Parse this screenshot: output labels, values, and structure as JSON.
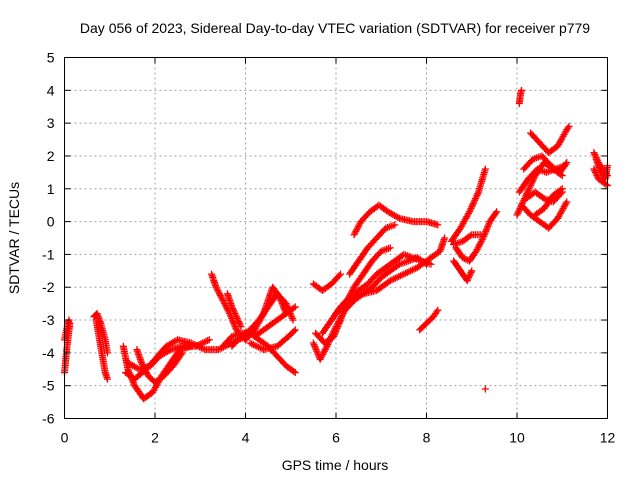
{
  "chart_data": {
    "type": "scatter",
    "title": "Day 056 of 2023, Sidereal Day-to-day VTEC variation (SDTVAR) for receiver p779",
    "xlabel": "GPS time / hours",
    "ylabel": "SDTVAR / TECUs",
    "xlim": [
      0,
      12
    ],
    "ylim": [
      -6,
      5
    ],
    "xticks": [
      0,
      2,
      4,
      6,
      8,
      10,
      12
    ],
    "yticks": [
      -6,
      -5,
      -4,
      -3,
      -2,
      -1,
      0,
      1,
      2,
      3,
      4,
      5
    ],
    "grid": true,
    "marker": "plus",
    "colors": {
      "points": "#ff0000"
    },
    "series": [
      {
        "segments": [
          [
            [
              0.0,
              -4.6
            ],
            [
              0.05,
              -3.9
            ],
            [
              0.1,
              -3.3
            ],
            [
              0.12,
              -3.1
            ]
          ],
          [
            [
              0.0,
              -3.6
            ],
            [
              0.06,
              -3.2
            ],
            [
              0.1,
              -3.0
            ]
          ],
          [
            [
              0.7,
              -3.0
            ],
            [
              0.75,
              -3.4
            ],
            [
              0.8,
              -3.8
            ],
            [
              0.85,
              -4.2
            ],
            [
              0.9,
              -4.6
            ],
            [
              0.95,
              -4.8
            ]
          ],
          [
            [
              0.65,
              -2.9
            ],
            [
              0.72,
              -2.8
            ],
            [
              0.8,
              -3.1
            ],
            [
              0.9,
              -3.6
            ],
            [
              0.95,
              -4.0
            ]
          ],
          [
            [
              1.3,
              -3.8
            ],
            [
              1.4,
              -4.5
            ],
            [
              1.55,
              -5.0
            ],
            [
              1.75,
              -5.4
            ],
            [
              1.95,
              -5.2
            ],
            [
              2.15,
              -4.7
            ],
            [
              2.35,
              -4.3
            ],
            [
              2.55,
              -3.9
            ],
            [
              2.8,
              -3.8
            ]
          ],
          [
            [
              1.35,
              -4.6
            ],
            [
              1.55,
              -4.8
            ],
            [
              1.8,
              -4.5
            ],
            [
              2.0,
              -4.2
            ],
            [
              2.25,
              -3.8
            ],
            [
              2.5,
              -3.6
            ],
            [
              2.8,
              -3.7
            ],
            [
              3.1,
              -3.9
            ],
            [
              3.4,
              -3.9
            ],
            [
              3.7,
              -3.7
            ],
            [
              4.0,
              -3.5
            ]
          ],
          [
            [
              1.4,
              -4.3
            ],
            [
              1.65,
              -4.5
            ],
            [
              1.9,
              -4.4
            ],
            [
              2.1,
              -4.1
            ],
            [
              2.35,
              -3.9
            ],
            [
              2.6,
              -3.8
            ],
            [
              2.9,
              -3.8
            ],
            [
              3.2,
              -3.6
            ]
          ],
          [
            [
              1.6,
              -3.9
            ],
            [
              1.7,
              -4.3
            ],
            [
              1.85,
              -4.7
            ],
            [
              2.0,
              -4.9
            ],
            [
              2.2,
              -4.7
            ],
            [
              2.4,
              -4.4
            ],
            [
              2.6,
              -4.0
            ]
          ],
          [
            [
              3.25,
              -1.6
            ],
            [
              3.35,
              -2.0
            ],
            [
              3.5,
              -2.4
            ],
            [
              3.65,
              -2.8
            ],
            [
              3.8,
              -3.3
            ],
            [
              4.0,
              -3.6
            ]
          ],
          [
            [
              3.6,
              -2.2
            ],
            [
              3.7,
              -2.6
            ],
            [
              3.8,
              -2.9
            ],
            [
              3.9,
              -3.2
            ]
          ],
          [
            [
              3.5,
              -3.8
            ],
            [
              3.7,
              -3.5
            ],
            [
              3.9,
              -3.4
            ],
            [
              4.1,
              -3.4
            ],
            [
              4.3,
              -3.6
            ],
            [
              4.5,
              -3.8
            ],
            [
              4.7,
              -4.1
            ],
            [
              4.9,
              -4.4
            ],
            [
              5.1,
              -4.6
            ]
          ],
          [
            [
              3.7,
              -3.8
            ],
            [
              3.9,
              -3.5
            ],
            [
              4.1,
              -3.3
            ],
            [
              4.3,
              -3.0
            ],
            [
              4.5,
              -2.6
            ],
            [
              4.7,
              -2.2
            ],
            [
              4.9,
              -2.5
            ],
            [
              5.05,
              -3.0
            ]
          ],
          [
            [
              4.0,
              -3.6
            ],
            [
              4.2,
              -3.3
            ],
            [
              4.4,
              -2.8
            ],
            [
              4.5,
              -2.4
            ],
            [
              4.6,
              -2.0
            ],
            [
              4.75,
              -2.3
            ],
            [
              4.9,
              -2.8
            ]
          ],
          [
            [
              4.1,
              -3.7
            ],
            [
              4.4,
              -3.9
            ],
            [
              4.7,
              -3.8
            ],
            [
              4.95,
              -3.5
            ],
            [
              5.1,
              -3.3
            ]
          ],
          [
            [
              4.2,
              -3.5
            ],
            [
              4.5,
              -3.2
            ],
            [
              4.8,
              -2.9
            ],
            [
              5.1,
              -2.6
            ]
          ],
          [
            [
              5.5,
              -1.9
            ],
            [
              5.7,
              -2.1
            ],
            [
              5.9,
              -1.9
            ],
            [
              6.1,
              -1.6
            ]
          ],
          [
            [
              5.55,
              -3.4
            ],
            [
              5.75,
              -3.7
            ],
            [
              5.95,
              -3.5
            ],
            [
              6.1,
              -3.0
            ],
            [
              6.25,
              -2.4
            ],
            [
              6.4,
              -2.0
            ],
            [
              6.6,
              -1.6
            ],
            [
              6.8,
              -1.2
            ],
            [
              7.0,
              -0.9
            ],
            [
              7.2,
              -0.8
            ]
          ],
          [
            [
              5.5,
              -3.7
            ],
            [
              5.65,
              -4.2
            ],
            [
              5.8,
              -3.8
            ],
            [
              6.0,
              -3.2
            ],
            [
              6.2,
              -2.7
            ],
            [
              6.4,
              -2.4
            ],
            [
              6.6,
              -2.2
            ],
            [
              6.8,
              -2.0
            ],
            [
              7.0,
              -1.7
            ],
            [
              7.2,
              -1.5
            ],
            [
              7.4,
              -1.3
            ],
            [
              7.6,
              -1.2
            ],
            [
              7.8,
              -1.1
            ],
            [
              8.0,
              -1.3
            ]
          ],
          [
            [
              5.7,
              -3.4
            ],
            [
              5.9,
              -3.0
            ],
            [
              6.1,
              -2.6
            ],
            [
              6.3,
              -2.3
            ],
            [
              6.5,
              -2.1
            ],
            [
              6.7,
              -1.9
            ],
            [
              6.9,
              -1.6
            ],
            [
              7.1,
              -1.4
            ],
            [
              7.3,
              -1.2
            ],
            [
              7.5,
              -1.0
            ],
            [
              7.7,
              -1.1
            ],
            [
              7.9,
              -1.2
            ],
            [
              8.1,
              -1.3
            ]
          ],
          [
            [
              6.0,
              -2.8
            ],
            [
              6.3,
              -2.4
            ],
            [
              6.6,
              -2.2
            ],
            [
              6.9,
              -2.1
            ],
            [
              7.2,
              -1.8
            ],
            [
              7.5,
              -1.6
            ],
            [
              7.8,
              -1.4
            ],
            [
              8.1,
              -1.1
            ],
            [
              8.3,
              -0.9
            ],
            [
              8.4,
              -0.5
            ]
          ],
          [
            [
              6.3,
              -1.6
            ],
            [
              6.5,
              -1.2
            ],
            [
              6.7,
              -0.8
            ],
            [
              6.9,
              -0.5
            ],
            [
              7.1,
              -0.2
            ],
            [
              7.3,
              -0.1
            ]
          ],
          [
            [
              6.4,
              -0.4
            ],
            [
              6.55,
              0.0
            ],
            [
              6.75,
              0.3
            ],
            [
              6.95,
              0.5
            ],
            [
              7.15,
              0.3
            ],
            [
              7.4,
              0.1
            ],
            [
              7.7,
              0.0
            ],
            [
              8.0,
              0.0
            ],
            [
              8.25,
              -0.1
            ]
          ],
          [
            [
              7.85,
              -3.3
            ],
            [
              8.0,
              -3.1
            ],
            [
              8.15,
              -2.9
            ],
            [
              8.25,
              -2.7
            ]
          ],
          [
            [
              8.55,
              -0.6
            ],
            [
              8.75,
              -0.2
            ],
            [
              8.95,
              0.3
            ],
            [
              9.15,
              0.9
            ],
            [
              9.3,
              1.6
            ]
          ],
          [
            [
              8.65,
              -0.8
            ],
            [
              8.8,
              -1.1
            ],
            [
              8.95,
              -1.2
            ],
            [
              9.1,
              -0.9
            ],
            [
              9.25,
              -0.5
            ],
            [
              9.4,
              0.0
            ],
            [
              9.55,
              0.3
            ]
          ],
          [
            [
              8.6,
              -1.2
            ],
            [
              8.75,
              -1.5
            ],
            [
              8.9,
              -1.8
            ],
            [
              9.0,
              -1.5
            ]
          ],
          [
            [
              8.6,
              -0.7
            ],
            [
              8.8,
              -0.6
            ],
            [
              9.0,
              -0.4
            ],
            [
              9.2,
              -0.4
            ]
          ],
          [
            [
              9.3,
              -5.1
            ]
          ],
          [
            [
              10.05,
              3.6
            ],
            [
              10.08,
              3.9
            ],
            [
              10.1,
              4.0
            ]
          ],
          [
            [
              10.0,
              0.2
            ],
            [
              10.2,
              0.8
            ],
            [
              10.4,
              1.4
            ],
            [
              10.6,
              1.8
            ],
            [
              10.8,
              1.6
            ],
            [
              11.0,
              1.4
            ]
          ],
          [
            [
              10.05,
              0.9
            ],
            [
              10.25,
              1.3
            ],
            [
              10.45,
              1.6
            ],
            [
              10.65,
              1.5
            ],
            [
              10.85,
              1.6
            ],
            [
              11.05,
              1.7
            ]
          ],
          [
            [
              10.1,
              0.5
            ],
            [
              10.3,
              0.2
            ],
            [
              10.5,
              0.0
            ],
            [
              10.7,
              -0.2
            ],
            [
              10.9,
              0.1
            ],
            [
              11.1,
              0.6
            ]
          ],
          [
            [
              10.15,
              1.6
            ],
            [
              10.35,
              1.9
            ],
            [
              10.55,
              2.0
            ],
            [
              10.75,
              1.7
            ],
            [
              10.95,
              1.5
            ],
            [
              11.1,
              1.8
            ]
          ],
          [
            [
              10.3,
              2.7
            ],
            [
              10.5,
              2.4
            ],
            [
              10.7,
              2.1
            ],
            [
              10.9,
              2.3
            ],
            [
              11.1,
              2.8
            ],
            [
              11.15,
              2.9
            ]
          ],
          [
            [
              10.2,
              0.7
            ],
            [
              10.4,
              0.9
            ],
            [
              10.6,
              0.7
            ],
            [
              10.8,
              0.6
            ],
            [
              11.0,
              0.9
            ]
          ],
          [
            [
              10.4,
              0.2
            ],
            [
              10.6,
              0.4
            ],
            [
              10.8,
              0.8
            ],
            [
              11.0,
              1.0
            ]
          ],
          [
            [
              11.7,
              2.1
            ],
            [
              11.8,
              1.8
            ],
            [
              11.9,
              1.6
            ],
            [
              12.0,
              1.4
            ]
          ],
          [
            [
              11.7,
              1.6
            ],
            [
              11.8,
              1.3
            ],
            [
              11.9,
              1.2
            ],
            [
              12.0,
              1.1
            ]
          ],
          [
            [
              11.75,
              1.9
            ],
            [
              11.85,
              1.5
            ],
            [
              11.95,
              1.3
            ],
            [
              12.0,
              1.7
            ]
          ]
        ]
      }
    ]
  }
}
